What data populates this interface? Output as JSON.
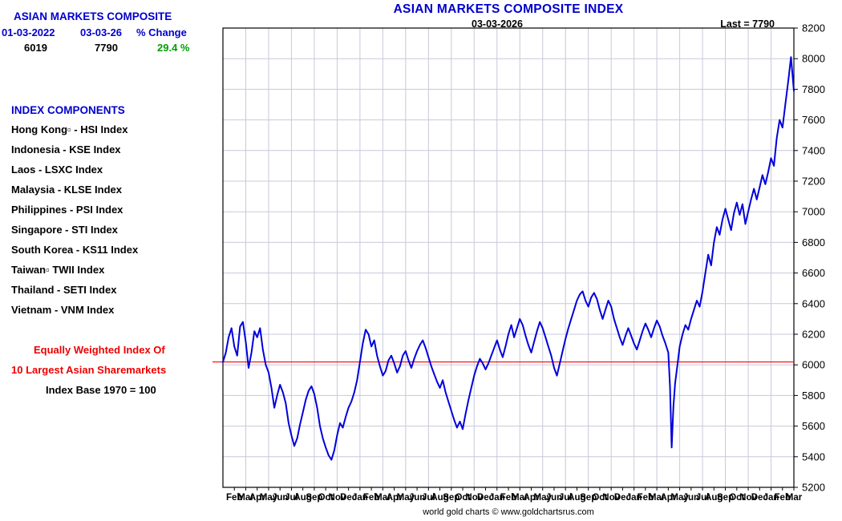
{
  "title": "ASIAN MARKETS COMPOSITE INDEX",
  "panel": {
    "heading": "ASIAN MARKETS COMPOSITE",
    "start_date_label": "01-03-2022",
    "end_date_label": "03-03-26",
    "change_label": "% Change",
    "start_value": "6019",
    "end_value": "7790",
    "change_value": "29.4 %",
    "components_heading": "INDEX COMPONENTS",
    "components": [
      "Hong Kong▫ - HSI Index",
      "Indonesia - KSE Index",
      "Laos - LSXC Index",
      "Malaysia - KLSE Index",
      "Philippines - PSI Index",
      "Singapore - STI Index",
      "South Korea - KS11 Index",
      "Taiwan▫ TWII Index",
      "Thailand - SETI Index",
      "Vietnam - VNM Index"
    ],
    "note_red_1": "Equally Weighted Index Of",
    "note_red_2": "10 Largest Asian Sharemarkets",
    "note_base": "Index Base 1970 = 100"
  },
  "plot": {
    "date_label": "03-03-2026",
    "last_label": "Last = 7790"
  },
  "footer": "world gold charts © www.goldchartsrus.com",
  "colors": {
    "title_blue": "#0000cd",
    "series_blue": "#0000dd",
    "reference_red": "#ff0000",
    "change_green": "#00a000",
    "grid": "#c8c8dc",
    "frame": "#000000"
  },
  "chart_data": {
    "type": "line",
    "title": "ASIAN MARKETS COMPOSITE INDEX",
    "x_unit": "months since 01-03-2022",
    "x_range": [
      0,
      50
    ],
    "ylim": [
      5200,
      8200
    ],
    "y_ticks": [
      5200,
      5400,
      5600,
      5800,
      6000,
      6200,
      6400,
      6600,
      6800,
      7000,
      7200,
      7400,
      7600,
      7800,
      8000,
      8200
    ],
    "x_tick_labels": [
      "Feb",
      "Mar",
      "Apr",
      "May",
      "Jun",
      "Jul",
      "Aug",
      "Sep",
      "Oct",
      "Nov",
      "Dec",
      "Jan",
      "Feb",
      "Mar",
      "Apr",
      "May",
      "Jun",
      "Jul",
      "Aug",
      "Sep",
      "Oct",
      "Nov",
      "Dec",
      "Jan",
      "Feb",
      "Mar",
      "Apr",
      "May",
      "Jun",
      "Jul",
      "Aug",
      "Sep",
      "Oct",
      "Nov",
      "Dec",
      "Jan",
      "Feb",
      "Mar",
      "Apr",
      "May",
      "Jun",
      "Jul",
      "Aug",
      "Sep",
      "Oct",
      "Nov",
      "Dec",
      "Jan",
      "Feb",
      "Mar"
    ],
    "reference_line": 6019,
    "grid": true,
    "legend": "none",
    "last_value": 7790,
    "series": [
      {
        "name": "Asian Markets Composite Index",
        "points": [
          [
            0,
            6019
          ],
          [
            0.25,
            6080
          ],
          [
            0.5,
            6180
          ],
          [
            0.75,
            6240
          ],
          [
            1,
            6120
          ],
          [
            1.25,
            6060
          ],
          [
            1.5,
            6250
          ],
          [
            1.75,
            6280
          ],
          [
            2,
            6150
          ],
          [
            2.25,
            5980
          ],
          [
            2.5,
            6080
          ],
          [
            2.75,
            6220
          ],
          [
            3,
            6180
          ],
          [
            3.25,
            6240
          ],
          [
            3.5,
            6100
          ],
          [
            3.75,
            6000
          ],
          [
            4,
            5950
          ],
          [
            4.25,
            5850
          ],
          [
            4.5,
            5720
          ],
          [
            4.75,
            5800
          ],
          [
            5,
            5870
          ],
          [
            5.25,
            5820
          ],
          [
            5.5,
            5750
          ],
          [
            5.75,
            5620
          ],
          [
            6,
            5540
          ],
          [
            6.25,
            5470
          ],
          [
            6.5,
            5520
          ],
          [
            6.75,
            5610
          ],
          [
            7,
            5690
          ],
          [
            7.25,
            5770
          ],
          [
            7.5,
            5830
          ],
          [
            7.75,
            5860
          ],
          [
            8,
            5810
          ],
          [
            8.25,
            5720
          ],
          [
            8.5,
            5600
          ],
          [
            8.75,
            5520
          ],
          [
            9,
            5460
          ],
          [
            9.25,
            5410
          ],
          [
            9.5,
            5380
          ],
          [
            9.75,
            5440
          ],
          [
            10,
            5540
          ],
          [
            10.25,
            5620
          ],
          [
            10.5,
            5590
          ],
          [
            10.75,
            5660
          ],
          [
            11,
            5720
          ],
          [
            11.25,
            5760
          ],
          [
            11.5,
            5820
          ],
          [
            11.75,
            5900
          ],
          [
            12,
            6020
          ],
          [
            12.25,
            6140
          ],
          [
            12.5,
            6230
          ],
          [
            12.75,
            6200
          ],
          [
            13,
            6120
          ],
          [
            13.25,
            6160
          ],
          [
            13.5,
            6060
          ],
          [
            13.75,
            5990
          ],
          [
            14,
            5930
          ],
          [
            14.25,
            5960
          ],
          [
            14.5,
            6030
          ],
          [
            14.75,
            6060
          ],
          [
            15,
            6010
          ],
          [
            15.25,
            5950
          ],
          [
            15.5,
            5990
          ],
          [
            15.75,
            6060
          ],
          [
            16,
            6090
          ],
          [
            16.25,
            6030
          ],
          [
            16.5,
            5980
          ],
          [
            16.75,
            6040
          ],
          [
            17,
            6090
          ],
          [
            17.25,
            6130
          ],
          [
            17.5,
            6160
          ],
          [
            17.75,
            6110
          ],
          [
            18,
            6050
          ],
          [
            18.25,
            5990
          ],
          [
            18.5,
            5940
          ],
          [
            18.75,
            5890
          ],
          [
            19,
            5850
          ],
          [
            19.25,
            5900
          ],
          [
            19.5,
            5820
          ],
          [
            19.75,
            5760
          ],
          [
            20,
            5700
          ],
          [
            20.25,
            5640
          ],
          [
            20.5,
            5590
          ],
          [
            20.75,
            5630
          ],
          [
            21,
            5580
          ],
          [
            21.25,
            5680
          ],
          [
            21.5,
            5770
          ],
          [
            21.75,
            5850
          ],
          [
            22,
            5930
          ],
          [
            22.25,
            5990
          ],
          [
            22.5,
            6040
          ],
          [
            22.75,
            6010
          ],
          [
            23,
            5970
          ],
          [
            23.25,
            6010
          ],
          [
            23.5,
            6060
          ],
          [
            23.75,
            6110
          ],
          [
            24,
            6160
          ],
          [
            24.25,
            6100
          ],
          [
            24.5,
            6050
          ],
          [
            24.75,
            6120
          ],
          [
            25,
            6200
          ],
          [
            25.25,
            6260
          ],
          [
            25.5,
            6180
          ],
          [
            25.75,
            6240
          ],
          [
            26,
            6300
          ],
          [
            26.25,
            6260
          ],
          [
            26.5,
            6190
          ],
          [
            26.75,
            6130
          ],
          [
            27,
            6080
          ],
          [
            27.25,
            6150
          ],
          [
            27.5,
            6220
          ],
          [
            27.75,
            6280
          ],
          [
            28,
            6240
          ],
          [
            28.25,
            6180
          ],
          [
            28.5,
            6120
          ],
          [
            28.75,
            6060
          ],
          [
            29,
            5980
          ],
          [
            29.25,
            5930
          ],
          [
            29.5,
            6010
          ],
          [
            29.75,
            6090
          ],
          [
            30,
            6170
          ],
          [
            30.25,
            6240
          ],
          [
            30.5,
            6300
          ],
          [
            30.75,
            6360
          ],
          [
            31,
            6420
          ],
          [
            31.25,
            6460
          ],
          [
            31.5,
            6480
          ],
          [
            31.75,
            6420
          ],
          [
            32,
            6380
          ],
          [
            32.25,
            6440
          ],
          [
            32.5,
            6470
          ],
          [
            32.75,
            6430
          ],
          [
            33,
            6360
          ],
          [
            33.25,
            6300
          ],
          [
            33.5,
            6360
          ],
          [
            33.75,
            6420
          ],
          [
            34,
            6380
          ],
          [
            34.25,
            6300
          ],
          [
            34.5,
            6240
          ],
          [
            34.75,
            6180
          ],
          [
            35,
            6130
          ],
          [
            35.25,
            6190
          ],
          [
            35.5,
            6240
          ],
          [
            35.75,
            6190
          ],
          [
            36,
            6140
          ],
          [
            36.25,
            6100
          ],
          [
            36.5,
            6160
          ],
          [
            36.75,
            6220
          ],
          [
            37,
            6270
          ],
          [
            37.25,
            6230
          ],
          [
            37.5,
            6180
          ],
          [
            37.75,
            6240
          ],
          [
            38,
            6290
          ],
          [
            38.25,
            6250
          ],
          [
            38.5,
            6190
          ],
          [
            38.75,
            6140
          ],
          [
            39,
            6080
          ],
          [
            39.15,
            5860
          ],
          [
            39.3,
            5460
          ],
          [
            39.45,
            5730
          ],
          [
            39.6,
            5880
          ],
          [
            39.8,
            6000
          ],
          [
            40,
            6120
          ],
          [
            40.25,
            6200
          ],
          [
            40.5,
            6260
          ],
          [
            40.75,
            6230
          ],
          [
            41,
            6300
          ],
          [
            41.25,
            6360
          ],
          [
            41.5,
            6420
          ],
          [
            41.75,
            6380
          ],
          [
            42,
            6480
          ],
          [
            42.25,
            6600
          ],
          [
            42.5,
            6720
          ],
          [
            42.75,
            6650
          ],
          [
            43,
            6800
          ],
          [
            43.25,
            6900
          ],
          [
            43.5,
            6850
          ],
          [
            43.75,
            6950
          ],
          [
            44,
            7020
          ],
          [
            44.25,
            6950
          ],
          [
            44.5,
            6880
          ],
          [
            44.75,
            6990
          ],
          [
            45,
            7060
          ],
          [
            45.25,
            6980
          ],
          [
            45.5,
            7050
          ],
          [
            45.75,
            6920
          ],
          [
            46,
            7000
          ],
          [
            46.25,
            7080
          ],
          [
            46.5,
            7150
          ],
          [
            46.75,
            7080
          ],
          [
            47,
            7160
          ],
          [
            47.25,
            7240
          ],
          [
            47.5,
            7180
          ],
          [
            47.75,
            7260
          ],
          [
            48,
            7350
          ],
          [
            48.25,
            7300
          ],
          [
            48.5,
            7480
          ],
          [
            48.75,
            7600
          ],
          [
            49,
            7550
          ],
          [
            49.25,
            7700
          ],
          [
            49.5,
            7850
          ],
          [
            49.75,
            8010
          ],
          [
            50,
            7790
          ]
        ]
      }
    ]
  }
}
